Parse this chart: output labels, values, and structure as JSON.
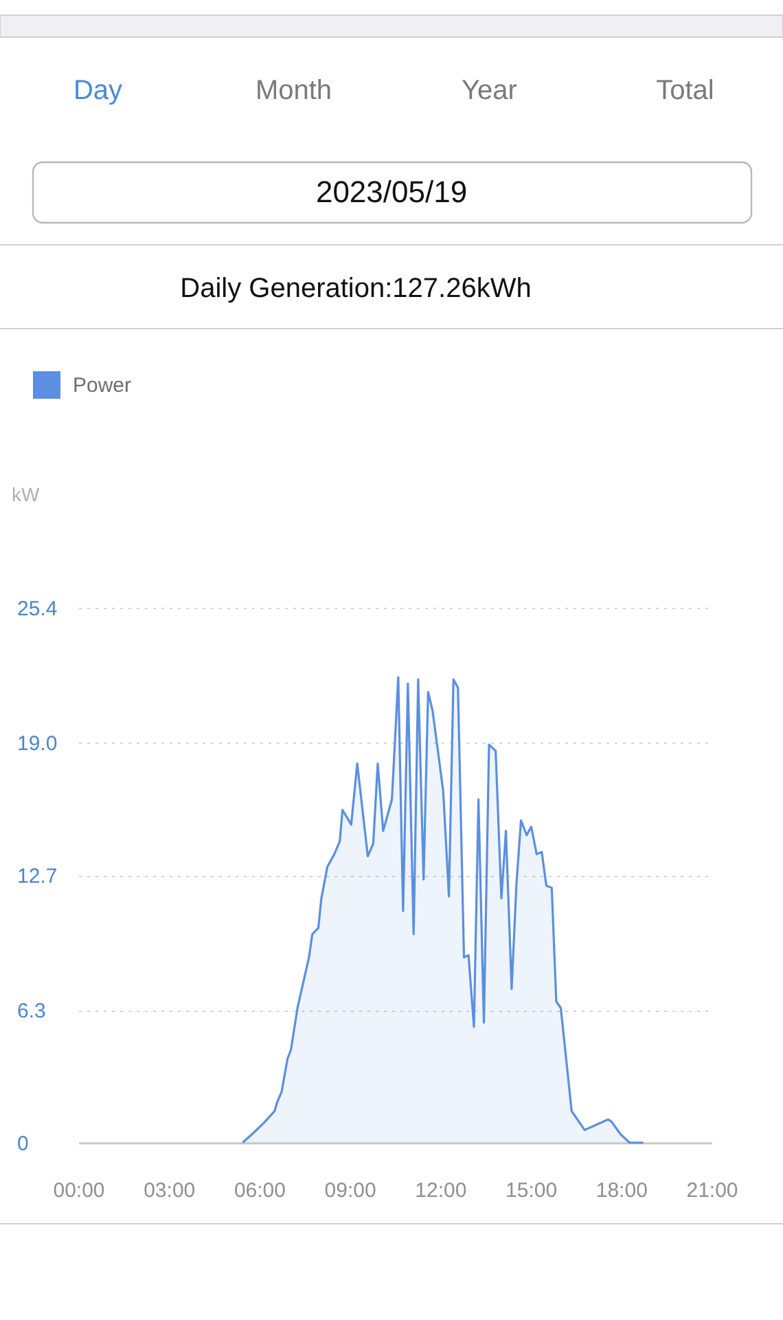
{
  "chart_data": {
    "type": "area",
    "title": "Daily Generation:127.26kWh",
    "subtitle": "2023/05/19",
    "ylabel": "kW",
    "annotations": [
      "Day",
      "Month",
      "Year",
      "Total"
    ],
    "xlim": [
      0,
      21
    ],
    "xticks": [
      {
        "value": 0,
        "label": "00:00"
      },
      {
        "value": 3,
        "label": "03:00"
      },
      {
        "value": 6,
        "label": "06:00"
      },
      {
        "value": 9,
        "label": "09:00"
      },
      {
        "value": 12,
        "label": "12:00"
      },
      {
        "value": 15,
        "label": "15:00"
      },
      {
        "value": 18,
        "label": "18:00"
      },
      {
        "value": 21,
        "label": "21:00"
      }
    ],
    "ylim": [
      0,
      25.4
    ],
    "yticks": [
      0,
      6.3,
      12.7,
      {
        "value": 19,
        "label": "19.0"
      },
      25.4
    ],
    "grid": "y",
    "legend": "top left",
    "x": [
      5.45,
      5.76,
      6.13,
      6.51,
      6.59,
      6.74,
      6.94,
      7.05,
      7.27,
      7.65,
      7.76,
      7.96,
      8.06,
      8.26,
      8.49,
      8.67,
      8.76,
      9.05,
      9.25,
      9.6,
      9.78,
      9.93,
      10.11,
      10.4,
      10.61,
      10.77,
      10.93,
      11.12,
      11.27,
      11.45,
      11.6,
      11.75,
      12.1,
      12.29,
      12.44,
      12.59,
      12.79,
      12.94,
      13.12,
      13.27,
      13.45,
      13.62,
      13.84,
      14.03,
      14.18,
      14.37,
      14.53,
      14.68,
      14.87,
      15.02,
      15.2,
      15.37,
      15.52,
      15.7,
      15.85,
      16.0,
      16.36,
      16.79,
      17.57,
      17.68,
      17.98,
      18.28,
      18.74
    ],
    "series": [
      {
        "name": "Power",
        "color": "#5b8fdf",
        "values": [
          0,
          0.4,
          0.9,
          1.5,
          1.9,
          2.4,
          4.0,
          4.4,
          6.4,
          8.8,
          9.9,
          10.2,
          11.6,
          13.1,
          13.7,
          14.3,
          15.8,
          15.1,
          18.0,
          13.6,
          14.2,
          18.0,
          14.8,
          16.3,
          22.1,
          11.0,
          21.8,
          9.9,
          22.0,
          12.5,
          21.4,
          20.5,
          16.7,
          11.7,
          22.0,
          21.6,
          8.8,
          8.9,
          5.5,
          16.3,
          5.7,
          18.9,
          18.6,
          11.6,
          14.8,
          7.3,
          12.3,
          15.3,
          14.6,
          15.0,
          13.7,
          13.8,
          12.2,
          12.1,
          6.7,
          6.4,
          1.5,
          0.6,
          1.1,
          1.0,
          0.4,
          0,
          0
        ]
      }
    ]
  }
}
